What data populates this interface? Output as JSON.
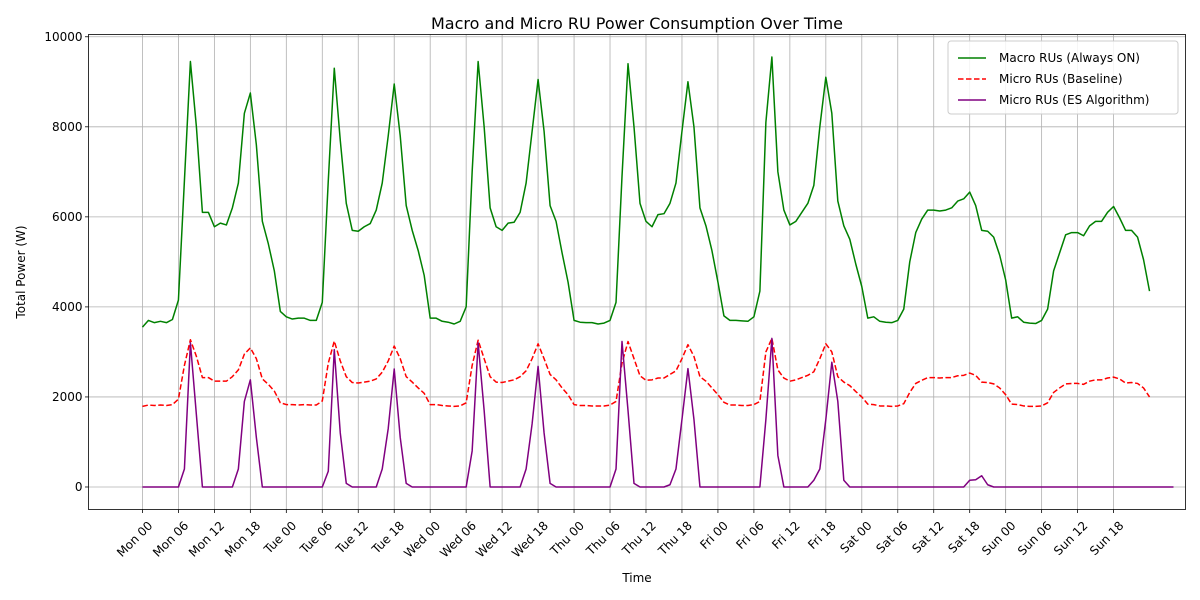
{
  "chart_data": {
    "type": "line",
    "title": "Macro and Micro RU Power Consumption Over Time",
    "xlabel": "Time",
    "ylabel": "Total Power (W)",
    "ylim": [
      -500,
      10050
    ],
    "yticks": [
      0,
      2000,
      4000,
      6000,
      8000,
      10000
    ],
    "xlim": [
      -9,
      174
    ],
    "grid": true,
    "legend_position": "top-right",
    "xtick_positions": [
      0,
      6,
      12,
      18,
      24,
      30,
      36,
      42,
      48,
      54,
      60,
      66,
      72,
      78,
      84,
      90,
      96,
      102,
      108,
      114,
      120,
      126,
      132,
      138,
      144,
      150,
      156,
      162
    ],
    "xtick_labels": [
      "Mon 00",
      "Mon 06",
      "Mon 12",
      "Mon 18",
      "Tue 00",
      "Tue 06",
      "Tue 12",
      "Tue 18",
      "Wed 00",
      "Wed 06",
      "Wed 12",
      "Wed 18",
      "Thu 00",
      "Thu 06",
      "Thu 12",
      "Thu 18",
      "Fri 00",
      "Fri 06",
      "Fri 12",
      "Fri 18",
      "Sat 00",
      "Sat 06",
      "Sat 12",
      "Sat 18",
      "Sun 00",
      "Sun 06",
      "Sun 12",
      "Sun 18"
    ],
    "series": [
      {
        "name": "Macro RUs (Always ON)",
        "color": "#008000",
        "dash": "solid",
        "values": [
          3550,
          3700,
          3650,
          3680,
          3650,
          3720,
          4150,
          6800,
          9450,
          8000,
          6100,
          6100,
          5780,
          5860,
          5820,
          6200,
          6750,
          8300,
          8750,
          7600,
          5900,
          5400,
          4800,
          3900,
          3780,
          3730,
          3750,
          3750,
          3700,
          3700,
          4100,
          6800,
          9300,
          7700,
          6300,
          5700,
          5680,
          5780,
          5850,
          6150,
          6750,
          7800,
          8950,
          7800,
          6250,
          5700,
          5250,
          4700,
          3750,
          3750,
          3680,
          3660,
          3620,
          3680,
          4000,
          7000,
          9450,
          8000,
          6200,
          5780,
          5700,
          5860,
          5880,
          6100,
          6750,
          7900,
          9050,
          7900,
          6250,
          5900,
          5200,
          4550,
          3700,
          3660,
          3650,
          3650,
          3620,
          3640,
          3700,
          4100,
          6900,
          9400,
          8000,
          6300,
          5900,
          5780,
          6050,
          6070,
          6300,
          6750,
          7900,
          9000,
          8000,
          6200,
          5800,
          5250,
          4550,
          3800,
          3700,
          3700,
          3690,
          3680,
          3780,
          4350,
          8100,
          9550,
          7000,
          6150,
          5820,
          5900,
          6100,
          6300,
          6700,
          8000,
          9100,
          8300,
          6350,
          5800,
          5500,
          4950,
          4450,
          3750,
          3780,
          3680,
          3660,
          3650,
          3700,
          3950,
          5000,
          5650,
          5950,
          6150,
          6150,
          6130,
          6150,
          6200,
          6350,
          6400,
          6550,
          6250,
          5700,
          5680,
          5550,
          5150,
          4600,
          3750,
          3780,
          3660,
          3640,
          3630,
          3700,
          3950,
          4800,
          5200,
          5600,
          5650,
          5650,
          5580,
          5800,
          5900,
          5900,
          6100,
          6230,
          5980,
          5700,
          5700,
          5550,
          5050,
          4350
        ]
      },
      {
        "name": "Micro RUs (Baseline)",
        "color": "#ff0000",
        "dash": "dashed",
        "values": [
          1790,
          1820,
          1810,
          1820,
          1810,
          1830,
          1950,
          2700,
          3270,
          2900,
          2430,
          2430,
          2350,
          2350,
          2350,
          2450,
          2600,
          2950,
          3090,
          2850,
          2400,
          2280,
          2130,
          1870,
          1830,
          1830,
          1820,
          1830,
          1820,
          1820,
          1910,
          2750,
          3240,
          2800,
          2450,
          2320,
          2310,
          2330,
          2350,
          2400,
          2550,
          2800,
          3130,
          2850,
          2450,
          2330,
          2200,
          2080,
          1830,
          1830,
          1810,
          1800,
          1790,
          1800,
          1870,
          2700,
          3260,
          2850,
          2450,
          2330,
          2320,
          2350,
          2380,
          2450,
          2580,
          2850,
          3180,
          2850,
          2500,
          2380,
          2200,
          2050,
          1830,
          1810,
          1810,
          1800,
          1800,
          1800,
          1820,
          1900,
          2750,
          3230,
          2850,
          2470,
          2370,
          2380,
          2420,
          2420,
          2500,
          2580,
          2850,
          3160,
          2900,
          2450,
          2350,
          2200,
          2050,
          1880,
          1820,
          1820,
          1810,
          1810,
          1830,
          1900,
          3000,
          3300,
          2600,
          2420,
          2350,
          2380,
          2430,
          2480,
          2560,
          2850,
          3180,
          3000,
          2450,
          2330,
          2250,
          2120,
          2000,
          1840,
          1830,
          1800,
          1800,
          1790,
          1800,
          1850,
          2100,
          2300,
          2370,
          2430,
          2430,
          2420,
          2430,
          2430,
          2470,
          2480,
          2530,
          2480,
          2330,
          2320,
          2290,
          2200,
          2050,
          1840,
          1830,
          1800,
          1790,
          1790,
          1800,
          1870,
          2100,
          2200,
          2290,
          2300,
          2300,
          2280,
          2350,
          2380,
          2380,
          2420,
          2440,
          2400,
          2310,
          2320,
          2300,
          2200,
          2000
        ]
      },
      {
        "name": "Micro RUs (ES Algorithm)",
        "color": "#800080",
        "dash": "solid",
        "values": [
          0,
          0,
          0,
          0,
          0,
          0,
          0,
          400,
          3200,
          1600,
          0,
          0,
          0,
          0,
          0,
          0,
          400,
          1900,
          2380,
          1100,
          0,
          0,
          0,
          0,
          0,
          0,
          0,
          0,
          0,
          0,
          0,
          350,
          3050,
          1200,
          80,
          0,
          0,
          0,
          0,
          0,
          400,
          1300,
          2620,
          1100,
          80,
          0,
          0,
          0,
          0,
          0,
          0,
          0,
          0,
          0,
          0,
          800,
          3200,
          1700,
          0,
          0,
          0,
          0,
          0,
          0,
          400,
          1400,
          2680,
          1200,
          80,
          0,
          0,
          0,
          0,
          0,
          0,
          0,
          0,
          0,
          0,
          400,
          3230,
          1700,
          80,
          0,
          0,
          0,
          0,
          0,
          50,
          400,
          1500,
          2630,
          1500,
          0,
          0,
          0,
          0,
          0,
          0,
          0,
          0,
          0,
          0,
          0,
          1500,
          3300,
          700,
          0,
          0,
          0,
          0,
          0,
          150,
          400,
          1500,
          2770,
          1900,
          150,
          0,
          0,
          0,
          0,
          0,
          0,
          0,
          0,
          0,
          0,
          0,
          0,
          0,
          0,
          0,
          0,
          0,
          0,
          0,
          0,
          150,
          160,
          250,
          50,
          0,
          0,
          0,
          0,
          0,
          0,
          0,
          0,
          0,
          0,
          0,
          0,
          0,
          0,
          0,
          0,
          0,
          0,
          0,
          0,
          0,
          0,
          0,
          0,
          0,
          0,
          0,
          0,
          0,
          0,
          0
        ]
      }
    ]
  }
}
